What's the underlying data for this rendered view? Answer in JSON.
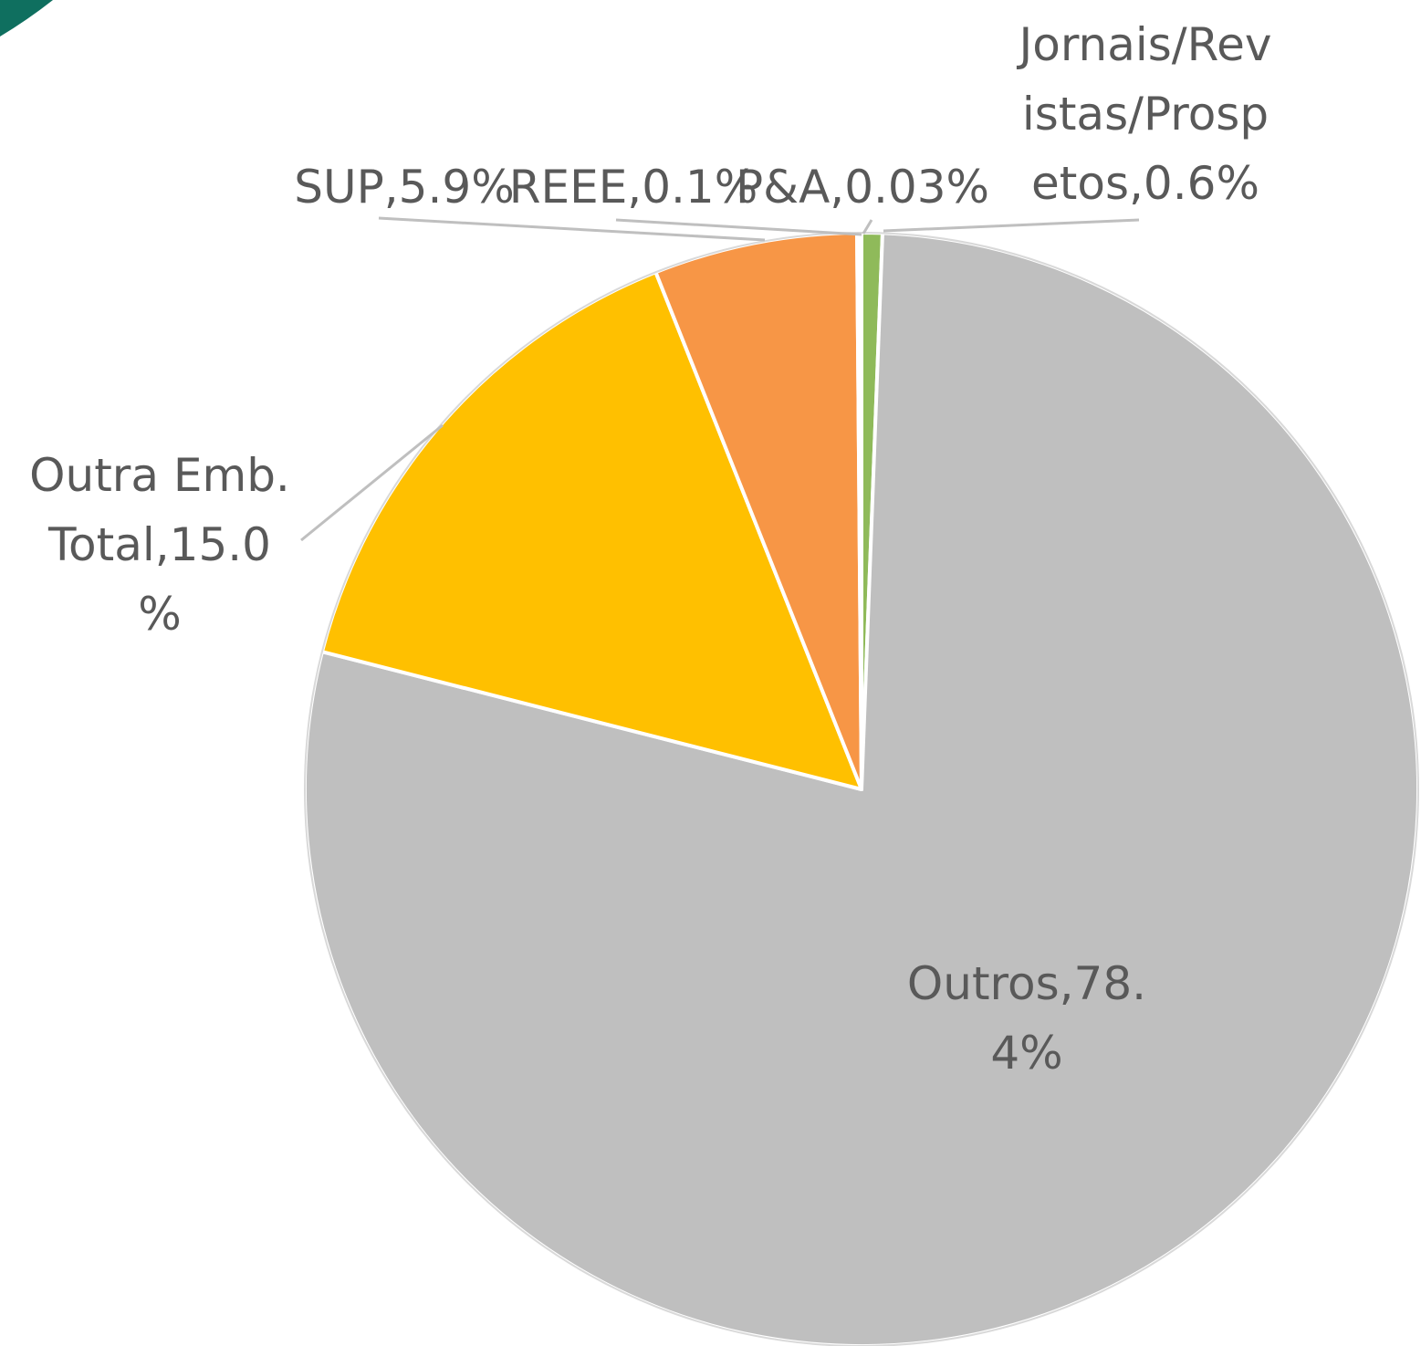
{
  "chart_data": {
    "type": "pie",
    "title": "",
    "slices": [
      {
        "label": "Jornais/Revistas/Prospetos",
        "value": 0.6,
        "color": "#8fba5a",
        "data_label_lines": [
          "Jornais/Rev",
          "istas/Prosp",
          "etos,0.6%"
        ]
      },
      {
        "label": "Outros",
        "value": 78.4,
        "color": "#bfbfbf",
        "data_label_lines": [
          "Outros,78.",
          "4%"
        ]
      },
      {
        "label": "Outra Emb. Total",
        "value": 15.0,
        "color": "#ffc000",
        "data_label_lines": [
          "Outra Emb.",
          "Total,15.0",
          "%"
        ]
      },
      {
        "label": "SUP",
        "value": 5.9,
        "color": "#f79646",
        "data_label_lines": [
          "SUP,5.9%"
        ]
      },
      {
        "label": "REEE",
        "value": 0.1,
        "color": "#4472c4",
        "data_label_lines": [
          "REEE,0.1%"
        ]
      },
      {
        "label": "P&A",
        "value": 0.03,
        "color": "#5b9bd5",
        "data_label_lines": [
          "P&A,0.03%"
        ]
      }
    ],
    "start_angle_deg": 0,
    "direction": "clockwise",
    "legend": "none"
  },
  "decoration": {
    "corner_accent_color": "#0f6f5f"
  }
}
